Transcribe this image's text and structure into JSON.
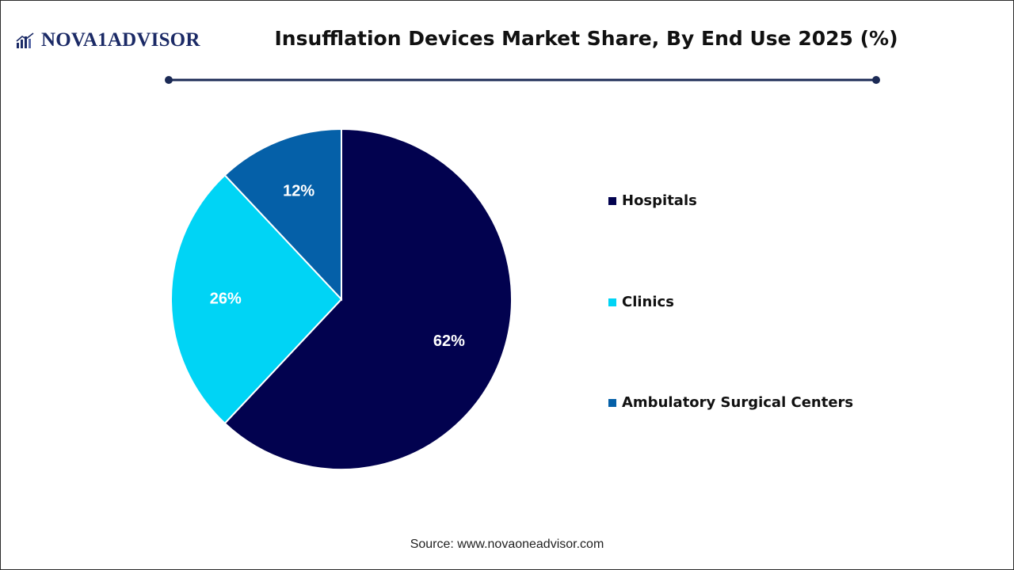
{
  "brand": {
    "logo_text": "NOVA1ADVISOR",
    "logo_color": "#1b2a66"
  },
  "header": {
    "title": "Insufflation Devices Market Share, By End Use 2025 (%)",
    "divider_color": "#1b2a55"
  },
  "chart_data": {
    "type": "pie",
    "title": "Insufflation Devices Market Share, By End Use 2025 (%)",
    "categories": [
      "Hospitals",
      "Clinics",
      "Ambulatory Surgical Centers"
    ],
    "values": [
      62,
      26,
      12
    ],
    "labels": [
      "62%",
      "26%",
      "12%"
    ],
    "colors": [
      "#02024f",
      "#00d4f5",
      "#0560a8"
    ],
    "start": "12 o'clock, clockwise",
    "legend_position": "right"
  },
  "footer": {
    "source": "Source: www.novaoneadvisor.com"
  }
}
